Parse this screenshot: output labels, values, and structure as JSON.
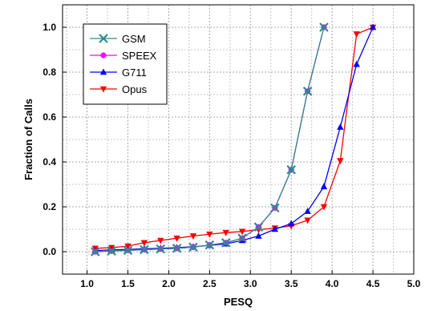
{
  "chart_data": {
    "type": "line",
    "title": "",
    "xlabel": "PESQ",
    "ylabel": "Fraction of Calls",
    "xlim": [
      0.7,
      5.0
    ],
    "ylim": [
      -0.1,
      1.1
    ],
    "xticks": [
      "1.0",
      "1.5",
      "2.0",
      "2.5",
      "3.0",
      "3.5",
      "4.0",
      "4.5",
      "5.0"
    ],
    "yticks": [
      "0.0",
      "0.2",
      "0.4",
      "0.6",
      "0.8",
      "1.0"
    ],
    "grid": true,
    "legend_position": "top-left",
    "series": [
      {
        "name": "GSM",
        "color": "#2e8b8b",
        "marker": "x",
        "x": [
          1.1,
          1.3,
          1.5,
          1.7,
          1.9,
          2.1,
          2.3,
          2.5,
          2.7,
          2.9,
          3.1,
          3.3,
          3.5,
          3.7,
          3.9
        ],
        "y": [
          0.0,
          0.003,
          0.006,
          0.009,
          0.012,
          0.015,
          0.02,
          0.03,
          0.04,
          0.06,
          0.11,
          0.195,
          0.365,
          0.715,
          1.0
        ]
      },
      {
        "name": "SPEEX",
        "color": "#ff00ff",
        "marker": "circle",
        "x": [
          1.1,
          1.3,
          1.5,
          1.7,
          1.9,
          2.1,
          2.3,
          2.5,
          2.7,
          2.9,
          3.1,
          3.3,
          3.5,
          3.7,
          3.9
        ],
        "y": [
          0.0,
          0.003,
          0.006,
          0.009,
          0.012,
          0.015,
          0.02,
          0.03,
          0.04,
          0.06,
          0.11,
          0.195,
          0.365,
          0.715,
          1.0
        ]
      },
      {
        "name": "G711",
        "color": "#0000ff",
        "marker": "triangle-up",
        "x": [
          1.1,
          1.3,
          1.5,
          1.7,
          1.9,
          2.1,
          2.3,
          2.5,
          2.7,
          2.9,
          3.1,
          3.3,
          3.5,
          3.7,
          3.9,
          4.1,
          4.3,
          4.5
        ],
        "y": [
          0.005,
          0.008,
          0.01,
          0.013,
          0.015,
          0.018,
          0.022,
          0.028,
          0.035,
          0.05,
          0.07,
          0.1,
          0.125,
          0.18,
          0.29,
          0.555,
          0.835,
          1.0
        ]
      },
      {
        "name": "Opus",
        "color": "#ff0000",
        "marker": "triangle-down",
        "x": [
          1.1,
          1.3,
          1.5,
          1.7,
          1.9,
          2.1,
          2.3,
          2.5,
          2.7,
          2.9,
          3.1,
          3.3,
          3.5,
          3.7,
          3.9,
          4.1,
          4.3,
          4.5
        ],
        "y": [
          0.015,
          0.018,
          0.025,
          0.04,
          0.05,
          0.06,
          0.07,
          0.078,
          0.085,
          0.09,
          0.098,
          0.105,
          0.115,
          0.14,
          0.2,
          0.405,
          0.97,
          1.0
        ]
      }
    ]
  }
}
